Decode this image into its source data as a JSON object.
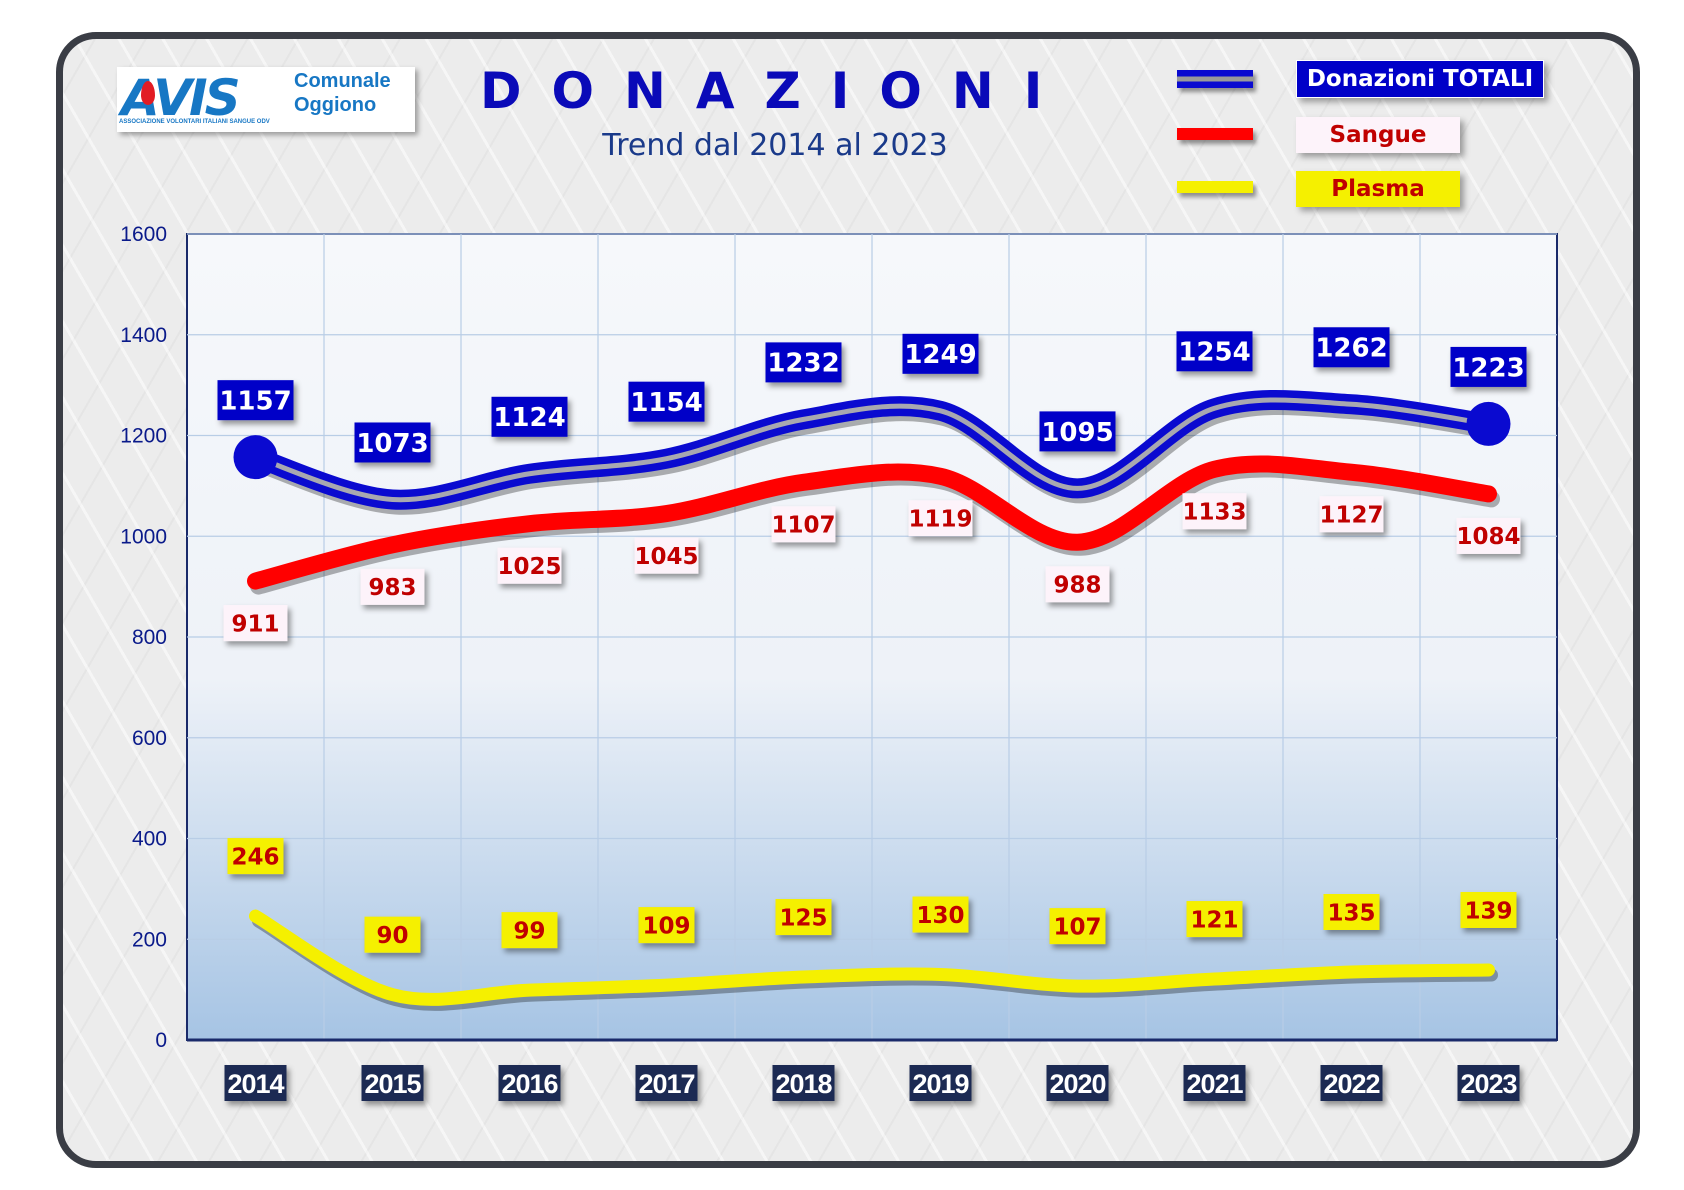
{
  "logo": {
    "brand": "AVIS",
    "line1": "Comunale",
    "line2": "Oggiono",
    "tagline": "ASSOCIAZIONE VOLONTARI ITALIANI SANGUE ODV"
  },
  "chart_data": {
    "type": "line",
    "title": "DONAZIONI",
    "subtitle": "Trend dal 2014 al 2023",
    "categories": [
      "2014",
      "2015",
      "2016",
      "2017",
      "2018",
      "2019",
      "2020",
      "2021",
      "2022",
      "2023"
    ],
    "ylim": [
      0,
      1600
    ],
    "yticks": [
      0,
      200,
      400,
      600,
      800,
      1000,
      1200,
      1400,
      1600
    ],
    "grid": true,
    "legend_position": "top-right",
    "series": [
      {
        "name": "Donazioni TOTALI",
        "color": "#0a0ad0",
        "values": [
          1157,
          1073,
          1124,
          1154,
          1232,
          1249,
          1095,
          1254,
          1262,
          1223
        ]
      },
      {
        "name": "Sangue",
        "color": "#ff0000",
        "values": [
          911,
          983,
          1025,
          1045,
          1107,
          1119,
          988,
          1133,
          1127,
          1084
        ]
      },
      {
        "name": "Plasma",
        "color": "#f5f000",
        "values": [
          246,
          90,
          99,
          109,
          125,
          130,
          107,
          121,
          135,
          139
        ]
      }
    ]
  }
}
